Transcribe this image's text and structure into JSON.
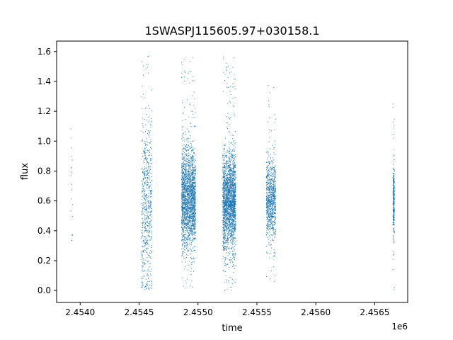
{
  "chart_data": {
    "type": "scatter",
    "title": "1SWASPJ115605.97+030158.1",
    "xlabel": "time",
    "ylabel": "flux",
    "x_offset_label": "1e6",
    "xlim": [
      2453800,
      2456780
    ],
    "ylim": [
      -0.08,
      1.67
    ],
    "x_ticks": [
      {
        "value": 2454000,
        "label": "2.4540"
      },
      {
        "value": 2454500,
        "label": "2.4545"
      },
      {
        "value": 2455000,
        "label": "2.4550"
      },
      {
        "value": 2455500,
        "label": "2.4555"
      },
      {
        "value": 2456000,
        "label": "2.4560"
      },
      {
        "value": 2456500,
        "label": "2.4565"
      }
    ],
    "y_ticks": [
      {
        "value": 0.0,
        "label": "0.0"
      },
      {
        "value": 0.2,
        "label": "0.2"
      },
      {
        "value": 0.4,
        "label": "0.4"
      },
      {
        "value": 0.6,
        "label": "0.6"
      },
      {
        "value": 0.8,
        "label": "0.8"
      },
      {
        "value": 1.0,
        "label": "1.0"
      },
      {
        "value": 1.2,
        "label": "1.2"
      },
      {
        "value": 1.4,
        "label": "1.4"
      },
      {
        "value": 1.6,
        "label": "1.6"
      }
    ],
    "grid": false,
    "marker_color": "#1f77b4",
    "series": [
      {
        "clusters": [
          {
            "x_range": [
              2453920,
              2453935
            ],
            "y_center": 0.7,
            "y_spread": 0.25,
            "y_min": 0.28,
            "y_max": 1.18,
            "count": 20
          },
          {
            "x_range": [
              2454520,
              2454610
            ],
            "y_center": 0.55,
            "y_spread": 0.32,
            "y_min": 0.0,
            "y_max": 1.58,
            "count": 650
          },
          {
            "x_range": [
              2454860,
              2454980
            ],
            "y_center": 0.61,
            "y_spread": 0.17,
            "y_min": 0.0,
            "y_max": 1.58,
            "count": 2200
          },
          {
            "x_range": [
              2455210,
              2455320
            ],
            "y_center": 0.6,
            "y_spread": 0.16,
            "y_min": 0.0,
            "y_max": 1.58,
            "count": 2300
          },
          {
            "x_range": [
              2455580,
              2455660
            ],
            "y_center": 0.62,
            "y_spread": 0.13,
            "y_min": 0.05,
            "y_max": 1.4,
            "count": 900
          },
          {
            "x_range": [
              2456655,
              2456668
            ],
            "y_center": 0.6,
            "y_spread": 0.14,
            "y_min": 0.0,
            "y_max": 1.35,
            "count": 300
          }
        ]
      }
    ]
  }
}
